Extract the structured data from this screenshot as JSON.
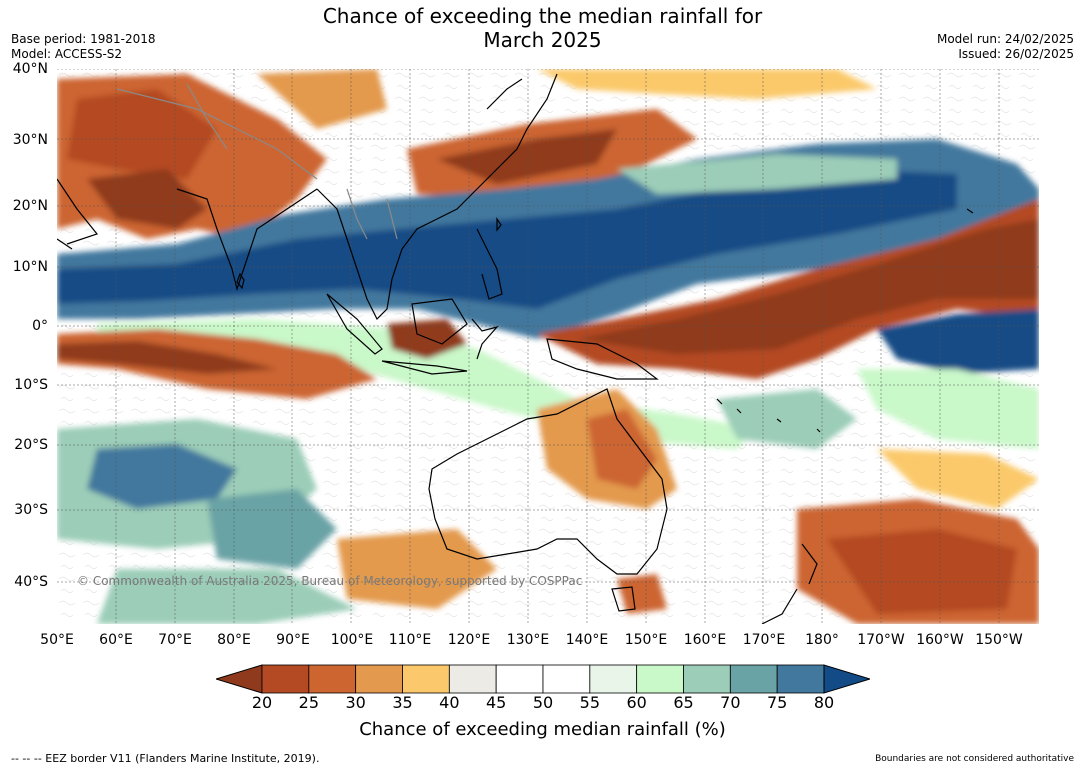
{
  "title_line1": "Chance of exceeding the median rainfall for",
  "title_line2": "March 2025",
  "meta_left": {
    "base_period": "Base period: 1981-2018",
    "model": "Model: ACCESS-S2"
  },
  "meta_right": {
    "model_run": "Model run: 24/02/2025",
    "issued": "Issued: 26/02/2025"
  },
  "lat_labels": [
    "40°N",
    "30°N",
    "20°N",
    "10°N",
    "0°",
    "10°S",
    "20°S",
    "30°S",
    "40°S"
  ],
  "lon_labels": [
    "50°E",
    "60°E",
    "70°E",
    "80°E",
    "90°E",
    "100°E",
    "110°E",
    "120°E",
    "130°E",
    "140°E",
    "150°E",
    "160°E",
    "170°E",
    "180°",
    "170°W",
    "160°W",
    "150°W"
  ],
  "colorbar": {
    "ticks": [
      "20",
      "25",
      "30",
      "35",
      "40",
      "45",
      "50",
      "55",
      "60",
      "65",
      "70",
      "75",
      "80"
    ],
    "colors": [
      "#8f3a1d",
      "#b44a24",
      "#cc6530",
      "#e39a4e",
      "#fbc96b",
      "#ecebe6",
      "#ffffff",
      "#ffffff",
      "#e8f5e8",
      "#c9f8c9",
      "#9bcdb8",
      "#6aa3a5",
      "#43789e",
      "#124b85"
    ],
    "label": "Chance of exceeding median rainfall (%)"
  },
  "copyright": "© Commonwealth of Australia 2025, Bureau of Meteorology, supported by COSPPac",
  "footer_left": "--  --  -- EEZ border V11 (Flanders Marine Institute, 2019).",
  "footer_right": "Boundaries are not considered authoritative",
  "legend_colors": {
    "dry": "#8f3a1d",
    "wet": "#124b85",
    "neutral": "#ffffff"
  }
}
